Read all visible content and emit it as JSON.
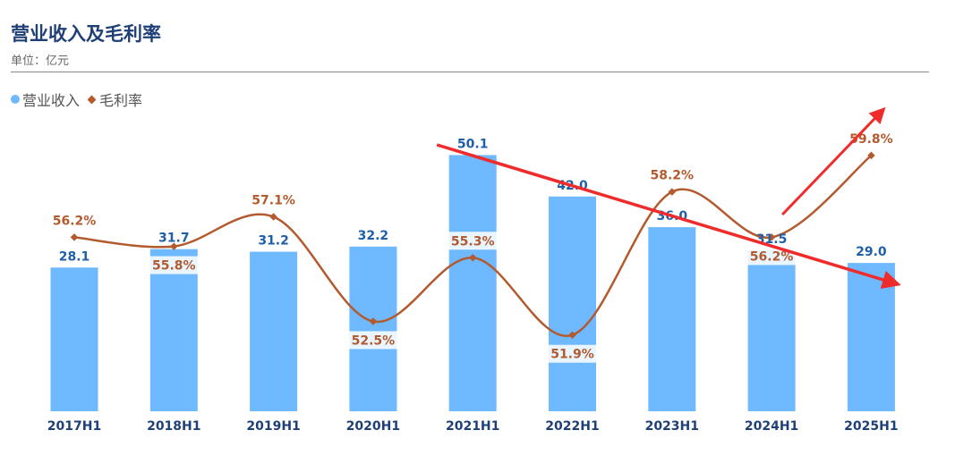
{
  "header": {
    "title": "营业收入及毛利率",
    "subtitle": "单位：亿元"
  },
  "legend": {
    "revenue_label": "营业收入",
    "margin_label": "毛利率"
  },
  "colors": {
    "bar": "#6eb9ff",
    "bar_label": "#1f5fa8",
    "line": "#b35a2e",
    "line_label": "#b35a2e",
    "axis_label": "#1f3f77",
    "arrow": "#ef2b2b"
  },
  "chart_data": {
    "type": "bar",
    "title": "营业收入及毛利率",
    "subtitle": "单位：亿元",
    "categories": [
      "2017H1",
      "2018H1",
      "2019H1",
      "2020H1",
      "2021H1",
      "2022H1",
      "2023H1",
      "2024H1",
      "2025H1"
    ],
    "series": [
      {
        "name": "营业收入",
        "type": "bar",
        "values": [
          28.1,
          31.7,
          31.2,
          32.2,
          50.1,
          42.0,
          36.0,
          31.5,
          29.0
        ],
        "labels": [
          "28.1",
          "31.7",
          "31.2",
          "32.2",
          "50.1",
          "42.0",
          "36.0",
          "31.5",
          "29.0"
        ]
      },
      {
        "name": "毛利率",
        "type": "line",
        "values": [
          56.2,
          55.8,
          57.1,
          52.5,
          55.3,
          51.9,
          58.2,
          56.2,
          59.8
        ],
        "labels": [
          "56.2%",
          "55.8%",
          "57.1%",
          "52.5%",
          "55.3%",
          "51.9%",
          "58.2%",
          "56.2%",
          "59.8%"
        ]
      }
    ],
    "legend_position": "top-left",
    "annotations": "red arrows: one trending down from 2021H1 to 2025H1, one trending up from 2024H1 to 2025H1"
  }
}
